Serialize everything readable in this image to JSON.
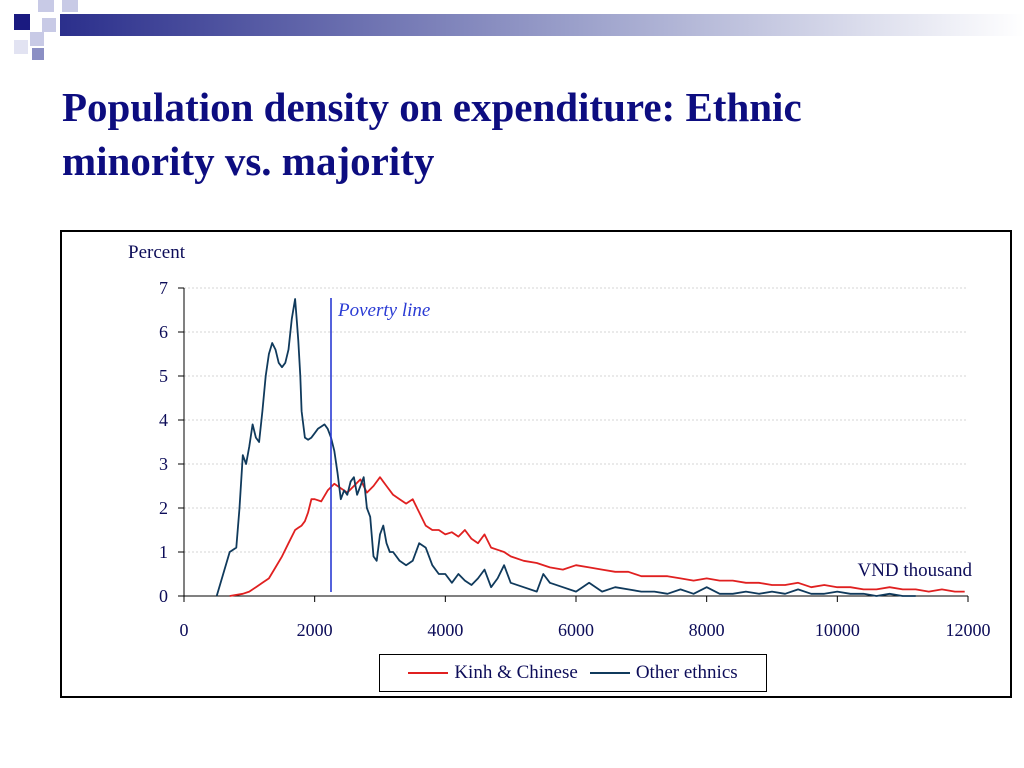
{
  "slide": {
    "title": "Population density on expenditure: Ethnic minority vs. majority"
  },
  "chart_data": {
    "type": "line",
    "ylabel": "Percent",
    "xlabel": "VND thousand",
    "xlim": [
      0,
      12000
    ],
    "ylim": [
      0,
      7
    ],
    "xticks": [
      0,
      2000,
      4000,
      6000,
      8000,
      10000,
      12000
    ],
    "yticks": [
      0,
      1,
      2,
      3,
      4,
      5,
      6,
      7
    ],
    "grid": "horizontal",
    "legend_position": "bottom-center",
    "annotation": {
      "text": "Poverty line",
      "x": 2250
    },
    "series": [
      {
        "name": "Kinh & Chinese",
        "color": "#e02020",
        "x": [
          700,
          900,
          1000,
          1100,
          1200,
          1300,
          1400,
          1500,
          1600,
          1700,
          1750,
          1800,
          1850,
          1900,
          1950,
          2000,
          2100,
          2200,
          2300,
          2400,
          2500,
          2600,
          2700,
          2800,
          2900,
          3000,
          3100,
          3200,
          3300,
          3400,
          3500,
          3600,
          3700,
          3800,
          3900,
          4000,
          4100,
          4200,
          4300,
          4400,
          4500,
          4600,
          4700,
          4800,
          4900,
          5000,
          5200,
          5400,
          5600,
          5800,
          6000,
          6200,
          6400,
          6600,
          6800,
          7000,
          7200,
          7400,
          7600,
          7800,
          8000,
          8200,
          8400,
          8600,
          8800,
          9000,
          9200,
          9400,
          9600,
          9800,
          10000,
          10200,
          10400,
          10600,
          10800,
          11000,
          11200,
          11400,
          11600,
          11800,
          11950
        ],
        "values": [
          0.0,
          0.05,
          0.1,
          0.2,
          0.3,
          0.4,
          0.65,
          0.9,
          1.2,
          1.5,
          1.55,
          1.6,
          1.7,
          1.9,
          2.2,
          2.2,
          2.15,
          2.4,
          2.55,
          2.45,
          2.35,
          2.5,
          2.65,
          2.35,
          2.5,
          2.7,
          2.5,
          2.3,
          2.2,
          2.1,
          2.2,
          1.9,
          1.6,
          1.5,
          1.5,
          1.4,
          1.45,
          1.35,
          1.5,
          1.3,
          1.2,
          1.4,
          1.1,
          1.05,
          1.0,
          0.9,
          0.8,
          0.75,
          0.65,
          0.6,
          0.7,
          0.65,
          0.6,
          0.55,
          0.55,
          0.45,
          0.45,
          0.45,
          0.4,
          0.35,
          0.4,
          0.35,
          0.35,
          0.3,
          0.3,
          0.25,
          0.25,
          0.3,
          0.2,
          0.25,
          0.2,
          0.2,
          0.15,
          0.15,
          0.2,
          0.15,
          0.15,
          0.1,
          0.15,
          0.1,
          0.1
        ]
      },
      {
        "name": "Other ethnics",
        "color": "#103a5c",
        "x": [
          500,
          600,
          700,
          800,
          850,
          900,
          950,
          1000,
          1050,
          1100,
          1150,
          1200,
          1250,
          1300,
          1350,
          1400,
          1450,
          1500,
          1550,
          1600,
          1650,
          1700,
          1730,
          1750,
          1780,
          1800,
          1850,
          1900,
          1950,
          2000,
          2050,
          2100,
          2150,
          2200,
          2250,
          2300,
          2350,
          2400,
          2450,
          2500,
          2550,
          2600,
          2650,
          2700,
          2750,
          2800,
          2850,
          2900,
          2950,
          3000,
          3050,
          3100,
          3150,
          3200,
          3300,
          3400,
          3500,
          3600,
          3700,
          3800,
          3900,
          4000,
          4100,
          4200,
          4300,
          4400,
          4500,
          4600,
          4700,
          4800,
          4900,
          5000,
          5200,
          5400,
          5500,
          5600,
          5800,
          6000,
          6100,
          6200,
          6400,
          6600,
          6800,
          7000,
          7200,
          7400,
          7600,
          7800,
          8000,
          8200,
          8400,
          8600,
          8800,
          9000,
          9200,
          9400,
          9600,
          9800,
          10000,
          10200,
          10400,
          10600,
          10800,
          11000,
          11200
        ],
        "values": [
          0.0,
          0.5,
          1.0,
          1.1,
          2.0,
          3.2,
          3.0,
          3.4,
          3.9,
          3.6,
          3.5,
          4.2,
          5.0,
          5.5,
          5.75,
          5.6,
          5.3,
          5.2,
          5.3,
          5.6,
          6.3,
          6.75,
          6.2,
          5.8,
          5.0,
          4.2,
          3.6,
          3.55,
          3.6,
          3.7,
          3.8,
          3.85,
          3.9,
          3.8,
          3.6,
          3.3,
          2.8,
          2.2,
          2.4,
          2.3,
          2.6,
          2.7,
          2.3,
          2.5,
          2.7,
          2.0,
          1.8,
          0.9,
          0.8,
          1.4,
          1.6,
          1.2,
          1.0,
          1.0,
          0.8,
          0.7,
          0.8,
          1.2,
          1.1,
          0.7,
          0.5,
          0.5,
          0.3,
          0.5,
          0.35,
          0.25,
          0.4,
          0.6,
          0.2,
          0.4,
          0.7,
          0.3,
          0.2,
          0.1,
          0.5,
          0.3,
          0.2,
          0.1,
          0.2,
          0.3,
          0.1,
          0.2,
          0.15,
          0.1,
          0.1,
          0.05,
          0.15,
          0.05,
          0.2,
          0.05,
          0.05,
          0.1,
          0.05,
          0.1,
          0.05,
          0.15,
          0.05,
          0.05,
          0.1,
          0.05,
          0.05,
          0.0,
          0.05,
          0.0,
          0.0
        ]
      }
    ]
  }
}
